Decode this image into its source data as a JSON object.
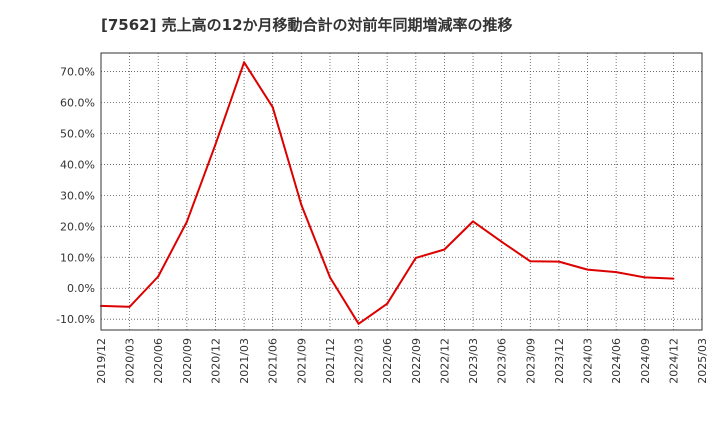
{
  "chart_data": {
    "type": "line",
    "title": "[7562]  売上高の12か月移動合計の対前年同期増減率の推移",
    "xlabel": "",
    "ylabel": "",
    "ylim": [
      -13.5,
      76
    ],
    "y_ticks": [
      70,
      60,
      50,
      40,
      30,
      20,
      10,
      0,
      -10
    ],
    "y_tick_labels": [
      "70.0%",
      "60.0%",
      "50.0%",
      "40.0%",
      "30.0%",
      "20.0%",
      "10.0%",
      "0.0%",
      "-10.0%"
    ],
    "categories": [
      "2019/12",
      "2020/03",
      "2020/06",
      "2020/09",
      "2020/12",
      "2021/03",
      "2021/06",
      "2021/09",
      "2021/12",
      "2022/03",
      "2022/06",
      "2022/09",
      "2022/12",
      "2023/03",
      "2023/06",
      "2023/09",
      "2023/12",
      "2024/03",
      "2024/06",
      "2024/09",
      "2024/12",
      "2025/03"
    ],
    "grid": true,
    "series": [
      {
        "name": "対前年同期増減率",
        "color": "#dd0000",
        "values": [
          -5.7,
          -6.0,
          3.8,
          21.5,
          46.5,
          73.0,
          58.5,
          27.0,
          3.5,
          -11.5,
          -5.0,
          9.8,
          12.5,
          21.6,
          15.0,
          8.7,
          8.6,
          6.0,
          5.2,
          3.5,
          3.1,
          null
        ]
      }
    ]
  }
}
